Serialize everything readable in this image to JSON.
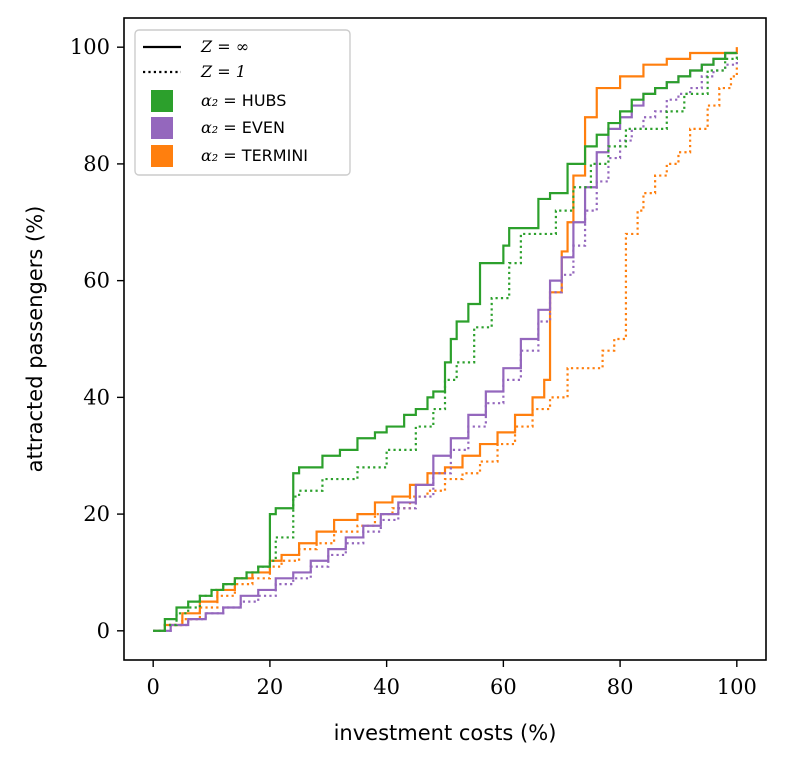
{
  "chart_data": {
    "type": "line",
    "xlabel": "investment costs (%)",
    "ylabel": "attracted passengers (%)",
    "xlim": [
      -5,
      105
    ],
    "ylim": [
      -5,
      105
    ],
    "xticks": [
      0,
      20,
      40,
      60,
      80,
      100
    ],
    "yticks": [
      0,
      20,
      40,
      60,
      80,
      100
    ],
    "x_tick_labels": [
      "0",
      "20",
      "40",
      "60",
      "80",
      "100"
    ],
    "y_tick_labels": [
      "0",
      "20",
      "40",
      "60",
      "80",
      "100"
    ],
    "grid": false,
    "step": true,
    "legend_position": "top-left",
    "legend": {
      "linestyles": [
        {
          "style": "solid",
          "label": "Z = ∞"
        },
        {
          "style": "dotted",
          "label": "Z = 1"
        }
      ],
      "colors": [
        {
          "color": "#2ca02c",
          "label_math": "α₂ = ",
          "label_text": "HUBS"
        },
        {
          "color": "#9467bd",
          "label_math": "α₂ = ",
          "label_text": "EVEN"
        },
        {
          "color": "#ff7f0e",
          "label_math": "α₂ = ",
          "label_text": "TERMINI"
        }
      ]
    },
    "series": [
      {
        "group": "HUBS",
        "style": "solid",
        "color": "#2ca02c",
        "x": [
          0,
          2,
          4,
          6,
          8,
          10,
          12,
          14,
          16,
          18,
          20,
          21,
          24,
          25,
          29,
          32,
          35,
          38,
          40,
          43,
          45,
          47,
          48,
          50,
          51,
          52,
          54,
          56,
          58,
          60,
          61,
          64,
          66,
          68,
          71,
          74,
          76,
          78,
          80,
          82,
          84,
          86,
          88,
          90,
          92,
          94,
          96,
          98,
          100
        ],
        "y": [
          0,
          2,
          4,
          5,
          6,
          7,
          8,
          9,
          10,
          11,
          20,
          21,
          27,
          28,
          30,
          31,
          33,
          34,
          35,
          37,
          38,
          40,
          41,
          46,
          50,
          53,
          56,
          63,
          63,
          66,
          69,
          69,
          74,
          75,
          80,
          83,
          85,
          87,
          89,
          91,
          92,
          93,
          94,
          95,
          96,
          97,
          98,
          99,
          99
        ]
      },
      {
        "group": "HUBS",
        "style": "dotted",
        "color": "#2ca02c",
        "x": [
          0,
          2,
          4,
          6,
          8,
          10,
          12,
          14,
          16,
          18,
          20,
          21,
          24,
          25,
          29,
          35,
          40,
          45,
          48,
          50,
          52,
          55,
          58,
          61,
          63,
          66,
          69,
          72,
          75,
          78,
          81,
          85,
          88,
          91,
          95,
          98,
          100
        ],
        "y": [
          0,
          1,
          3,
          4,
          6,
          7,
          8,
          9,
          10,
          11,
          12,
          16,
          23,
          24,
          26,
          28,
          31,
          35,
          38,
          43,
          46,
          52,
          57,
          63,
          68,
          68,
          72,
          76,
          80,
          83,
          86,
          86,
          89,
          92,
          96,
          98,
          99
        ]
      },
      {
        "group": "EVEN",
        "style": "solid",
        "color": "#9467bd",
        "x": [
          0,
          3,
          6,
          9,
          12,
          15,
          18,
          21,
          24,
          27,
          30,
          33,
          36,
          39,
          42,
          45,
          48,
          51,
          54,
          57,
          60,
          63,
          66,
          68,
          70,
          72,
          74,
          76,
          78,
          80,
          82,
          84,
          86,
          88,
          90,
          92,
          94,
          96,
          98,
          100
        ],
        "y": [
          0,
          1,
          2,
          3,
          4,
          6,
          7,
          9,
          10,
          12,
          14,
          16,
          18,
          20,
          22,
          25,
          30,
          33,
          37,
          41,
          45,
          50,
          55,
          60,
          64,
          70,
          76,
          82,
          86,
          88,
          90,
          92,
          93,
          94,
          95,
          96,
          97,
          98,
          99,
          99
        ]
      },
      {
        "group": "EVEN",
        "style": "dotted",
        "color": "#9467bd",
        "x": [
          0,
          3,
          6,
          9,
          12,
          15,
          18,
          21,
          24,
          27,
          30,
          33,
          36,
          39,
          42,
          45,
          48,
          51,
          54,
          57,
          60,
          63,
          66,
          68,
          70,
          72,
          74,
          76,
          78,
          80,
          82,
          84,
          86,
          88,
          90,
          92,
          94,
          96,
          98,
          100
        ],
        "y": [
          0,
          1,
          2,
          3,
          4,
          5,
          6,
          8,
          9,
          11,
          13,
          15,
          17,
          19,
          21,
          23,
          27,
          31,
          35,
          39,
          43,
          48,
          53,
          58,
          61,
          66,
          72,
          77,
          81,
          84,
          86,
          88,
          89,
          91,
          92,
          93,
          95,
          96,
          97,
          98
        ]
      },
      {
        "group": "TERMINI",
        "style": "solid",
        "color": "#ff7f0e",
        "x": [
          0,
          2,
          5,
          8,
          11,
          14,
          17,
          20,
          22,
          25,
          28,
          31,
          35,
          38,
          41,
          44,
          47,
          50,
          53,
          56,
          59,
          62,
          65,
          67,
          68,
          70,
          71,
          72,
          74,
          76,
          80,
          84,
          88,
          92,
          96,
          100
        ],
        "y": [
          0,
          1,
          3,
          5,
          7,
          9,
          10,
          12,
          13,
          15,
          17,
          19,
          20,
          22,
          23,
          25,
          27,
          28,
          30,
          32,
          34,
          37,
          40,
          43,
          58,
          65,
          70,
          78,
          88,
          93,
          95,
          97,
          98,
          99,
          99,
          100
        ]
      },
      {
        "group": "TERMINI",
        "style": "dotted",
        "color": "#ff7f0e",
        "x": [
          0,
          2,
          5,
          8,
          11,
          14,
          17,
          20,
          22,
          25,
          28,
          31,
          35,
          38,
          41,
          44,
          47,
          50,
          53,
          56,
          59,
          62,
          65,
          68,
          71,
          74,
          77,
          79,
          81,
          83,
          84,
          86,
          88,
          90,
          92,
          95,
          97,
          99,
          100
        ],
        "y": [
          0,
          1,
          2,
          4,
          6,
          8,
          9,
          11,
          12,
          14,
          15,
          17,
          18,
          20,
          21,
          23,
          24,
          26,
          27,
          29,
          32,
          35,
          38,
          40,
          45,
          45,
          48,
          50,
          68,
          72,
          75,
          78,
          80,
          82,
          86,
          90,
          93,
          95,
          97
        ]
      }
    ]
  }
}
